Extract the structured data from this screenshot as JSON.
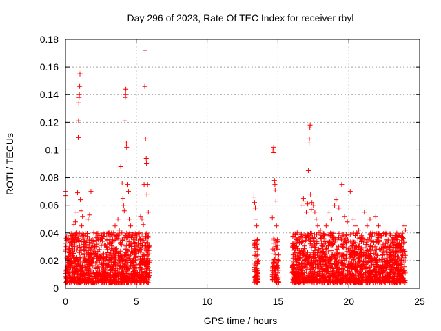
{
  "chart_data": {
    "type": "scatter",
    "title": "Day 296 of 2023, Rate Of TEC Index for receiver rbyl",
    "xlabel": "GPS time / hours",
    "ylabel": "ROTI / TECUs",
    "xlim": [
      0,
      25
    ],
    "ylim": [
      0,
      0.18
    ],
    "x_ticks": [
      0,
      5,
      10,
      15,
      20,
      25
    ],
    "x_tick_labels": [
      "0",
      "5",
      "10",
      "15",
      "20",
      "25"
    ],
    "y_ticks": [
      0,
      0.02,
      0.04,
      0.06,
      0.08,
      0.1,
      0.12,
      0.14,
      0.16,
      0.18
    ],
    "y_tick_labels": [
      "0",
      "0.02",
      "0.04",
      "0.06",
      "0.08",
      "0.1",
      "0.12",
      "0.14",
      "0.16",
      "0.18"
    ],
    "grid": true,
    "marker": "+",
    "marker_color": "#ff0000",
    "series": [
      {
        "name": "ROTI",
        "points": [
          [
            0.0,
            0.07
          ],
          [
            0.0,
            0.067
          ],
          [
            0.05,
            0.03
          ],
          [
            0.1,
            0.022
          ],
          [
            0.15,
            0.016
          ],
          [
            0.2,
            0.028
          ],
          [
            0.25,
            0.01
          ],
          [
            0.3,
            0.012
          ],
          [
            0.35,
            0.038
          ],
          [
            0.4,
            0.02
          ],
          [
            0.45,
            0.015
          ],
          [
            0.5,
            0.035
          ],
          [
            0.55,
            0.025
          ],
          [
            0.6,
            0.046
          ],
          [
            0.65,
            0.03
          ],
          [
            0.7,
            0.048
          ],
          [
            0.75,
            0.055
          ],
          [
            0.8,
            0.04
          ],
          [
            0.85,
            0.069
          ],
          [
            0.9,
            0.109
          ],
          [
            0.92,
            0.121
          ],
          [
            0.94,
            0.134
          ],
          [
            0.96,
            0.138
          ],
          [
            0.98,
            0.14
          ],
          [
            1.0,
            0.146
          ],
          [
            1.02,
            0.155
          ],
          [
            1.05,
            0.064
          ],
          [
            1.1,
            0.056
          ],
          [
            1.15,
            0.045
          ],
          [
            1.2,
            0.052
          ],
          [
            1.25,
            0.035
          ],
          [
            1.3,
            0.028
          ],
          [
            1.35,
            0.03
          ],
          [
            1.4,
            0.038
          ],
          [
            1.5,
            0.025
          ],
          [
            1.6,
            0.05
          ],
          [
            1.7,
            0.053
          ],
          [
            1.8,
            0.07
          ],
          [
            1.9,
            0.032
          ],
          [
            2.0,
            0.04
          ],
          [
            2.1,
            0.025
          ],
          [
            2.2,
            0.03
          ],
          [
            2.3,
            0.035
          ],
          [
            2.4,
            0.028
          ],
          [
            2.5,
            0.022
          ],
          [
            2.6,
            0.036
          ],
          [
            2.7,
            0.025
          ],
          [
            2.8,
            0.02
          ],
          [
            2.9,
            0.03
          ],
          [
            3.0,
            0.028
          ],
          [
            3.1,
            0.032
          ],
          [
            3.2,
            0.025
          ],
          [
            3.3,
            0.035
          ],
          [
            3.4,
            0.04
          ],
          [
            3.5,
            0.045
          ],
          [
            3.6,
            0.038
          ],
          [
            3.7,
            0.05
          ],
          [
            3.8,
            0.042
          ],
          [
            3.9,
            0.088
          ],
          [
            4.0,
            0.076
          ],
          [
            4.05,
            0.065
          ],
          [
            4.1,
            0.06
          ],
          [
            4.15,
            0.056
          ],
          [
            4.2,
            0.121
          ],
          [
            4.22,
            0.138
          ],
          [
            4.24,
            0.14
          ],
          [
            4.26,
            0.144
          ],
          [
            4.3,
            0.105
          ],
          [
            4.32,
            0.102
          ],
          [
            4.35,
            0.092
          ],
          [
            4.4,
            0.075
          ],
          [
            4.45,
            0.07
          ],
          [
            4.5,
            0.05
          ],
          [
            4.6,
            0.045
          ],
          [
            4.7,
            0.04
          ],
          [
            4.8,
            0.035
          ],
          [
            4.9,
            0.032
          ],
          [
            5.0,
            0.03
          ],
          [
            5.1,
            0.028
          ],
          [
            5.2,
            0.04
          ],
          [
            5.3,
            0.052
          ],
          [
            5.4,
            0.05
          ],
          [
            5.5,
            0.046
          ],
          [
            5.55,
            0.075
          ],
          [
            5.6,
            0.146
          ],
          [
            5.62,
            0.172
          ],
          [
            5.65,
            0.108
          ],
          [
            5.7,
            0.094
          ],
          [
            5.72,
            0.09
          ],
          [
            5.75,
            0.068
          ],
          [
            5.8,
            0.075
          ],
          [
            5.85,
            0.055
          ],
          [
            5.9,
            0.03
          ],
          [
            5.95,
            0.02
          ],
          [
            13.3,
            0.066
          ],
          [
            13.35,
            0.062
          ],
          [
            13.4,
            0.058
          ],
          [
            13.45,
            0.05
          ],
          [
            13.5,
            0.045
          ],
          [
            13.55,
            0.035
          ],
          [
            13.6,
            0.028
          ],
          [
            13.65,
            0.02
          ],
          [
            14.6,
            0.051
          ],
          [
            14.65,
            0.1
          ],
          [
            14.7,
            0.102
          ],
          [
            14.72,
            0.098
          ],
          [
            14.75,
            0.078
          ],
          [
            14.78,
            0.075
          ],
          [
            14.8,
            0.071
          ],
          [
            14.85,
            0.063
          ],
          [
            14.9,
            0.045
          ],
          [
            14.95,
            0.035
          ],
          [
            15.0,
            0.028
          ],
          [
            15.05,
            0.02
          ],
          [
            16.2,
            0.037
          ],
          [
            16.3,
            0.03
          ],
          [
            16.5,
            0.035
          ],
          [
            16.7,
            0.06
          ],
          [
            16.8,
            0.065
          ],
          [
            16.9,
            0.063
          ],
          [
            17.0,
            0.055
          ],
          [
            17.1,
            0.061
          ],
          [
            17.15,
            0.085
          ],
          [
            17.2,
            0.105
          ],
          [
            17.22,
            0.108
          ],
          [
            17.25,
            0.116
          ],
          [
            17.27,
            0.118
          ],
          [
            17.3,
            0.068
          ],
          [
            17.35,
            0.057
          ],
          [
            17.4,
            0.062
          ],
          [
            17.5,
            0.06
          ],
          [
            17.6,
            0.055
          ],
          [
            17.7,
            0.05
          ],
          [
            17.8,
            0.045
          ],
          [
            17.9,
            0.04
          ],
          [
            18.0,
            0.042
          ],
          [
            18.2,
            0.038
          ],
          [
            18.4,
            0.045
          ],
          [
            18.6,
            0.055
          ],
          [
            18.8,
            0.05
          ],
          [
            19.0,
            0.06
          ],
          [
            19.1,
            0.064
          ],
          [
            19.3,
            0.058
          ],
          [
            19.5,
            0.075
          ],
          [
            19.7,
            0.052
          ],
          [
            19.9,
            0.048
          ],
          [
            20.1,
            0.07
          ],
          [
            20.3,
            0.05
          ],
          [
            20.5,
            0.045
          ],
          [
            20.7,
            0.042
          ],
          [
            20.9,
            0.038
          ],
          [
            21.1,
            0.055
          ],
          [
            21.3,
            0.045
          ],
          [
            21.5,
            0.05
          ],
          [
            21.7,
            0.04
          ],
          [
            21.9,
            0.052
          ],
          [
            22.1,
            0.045
          ],
          [
            22.3,
            0.038
          ],
          [
            22.5,
            0.04
          ],
          [
            22.7,
            0.035
          ],
          [
            22.9,
            0.03
          ],
          [
            23.1,
            0.032
          ],
          [
            23.3,
            0.035
          ],
          [
            23.5,
            0.038
          ],
          [
            23.7,
            0.03
          ],
          [
            23.9,
            0.045
          ],
          [
            24.0,
            0.042
          ]
        ],
        "dense_bands": [
          {
            "x_range": [
              0.0,
              5.95
            ],
            "y_range": [
              0.004,
              0.026
            ]
          },
          {
            "x_range": [
              13.3,
              13.6
            ],
            "y_range": [
              0.004,
              0.022
            ]
          },
          {
            "x_range": [
              14.6,
              15.05
            ],
            "y_range": [
              0.004,
              0.022
            ]
          },
          {
            "x_range": [
              16.0,
              24.0
            ],
            "y_range": [
              0.004,
              0.026
            ]
          }
        ]
      }
    ]
  }
}
